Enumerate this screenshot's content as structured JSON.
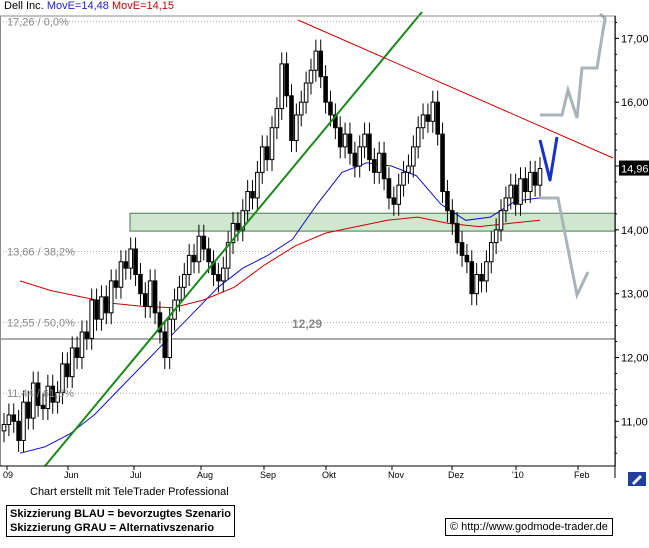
{
  "header": {
    "instrument": "Dell Inc.",
    "ma_blue_label": "MovE=14,48",
    "ma_red_label": "MovE=14,15"
  },
  "credit": "Chart erstellt mit TeleTrader Professional",
  "legend": {
    "line1": "Skizzierung BLAU = bevorzugtes Szenario",
    "line2": "Skizzierung GRAU = Alternativszenario"
  },
  "source": {
    "symbol": "©",
    "url": "http://www.godmode-trader.de"
  },
  "colors": {
    "candle": "#000000",
    "ma_blue": "#1010cc",
    "ma_red": "#cc0000",
    "trend_green": "#1a8a1a",
    "resistance_red": "#cc0000",
    "support_zone": "#cfe6cf",
    "scenario_blue": "#1a30c8",
    "scenario_gray": "#a7b5bb",
    "fib_line": "#aaaaaa",
    "level_line": "#555555"
  },
  "chart_data": {
    "type": "candlestick",
    "title": "Dell Inc.",
    "ylim": [
      10.3,
      17.35
    ],
    "y_ticks": [
      11.0,
      12.0,
      13.0,
      14.0,
      15.0,
      16.0,
      17.0
    ],
    "y_tick_labels": [
      "11,00",
      "12,00",
      "13,00",
      "14,00",
      "15,00",
      "16,00",
      "17,00"
    ],
    "x_tick_labels": [
      "09",
      "Jun",
      "Jul",
      "Aug",
      "Sep",
      "Okt",
      "Nov",
      "Dez",
      "'10",
      "Feb"
    ],
    "grid": "horizontal dotted at fibonacci levels",
    "last_price_label": "14,96",
    "fib_levels": [
      {
        "label": "17,26 / 0,0%",
        "value": 17.26
      },
      {
        "label": "13,66 / 38,2%",
        "value": 13.66
      },
      {
        "label": "12,55 / 50,0%",
        "value": 12.55
      },
      {
        "label": "11,44 / 61,8%",
        "value": 11.44
      }
    ],
    "horizontal_level": {
      "label": "12,29",
      "value": 12.29
    },
    "support_zone": [
      13.98,
      14.26
    ],
    "close_series_approx": [
      10.95,
      11.1,
      11.0,
      10.7,
      11.3,
      11.05,
      11.6,
      11.25,
      11.2,
      11.55,
      11.3,
      11.45,
      11.9,
      11.7,
      12.15,
      12.0,
      12.4,
      12.3,
      12.9,
      12.6,
      12.95,
      12.7,
      13.2,
      13.1,
      13.5,
      13.4,
      13.7,
      13.3,
      13.0,
      12.8,
      13.2,
      12.7,
      12.4,
      12.0,
      12.6,
      12.9,
      13.1,
      13.3,
      13.6,
      13.5,
      13.9,
      13.7,
      13.5,
      13.3,
      13.2,
      13.4,
      13.8,
      14.1,
      14.0,
      14.3,
      14.6,
      14.5,
      14.9,
      15.3,
      15.1,
      15.6,
      15.9,
      16.6,
      16.1,
      15.4,
      15.8,
      16.0,
      16.3,
      16.5,
      16.8,
      16.4,
      16.0,
      15.8,
      15.6,
      15.3,
      15.5,
      15.2,
      15.0,
      15.3,
      15.5,
      15.1,
      14.9,
      15.2,
      14.8,
      14.5,
      14.4,
      14.7,
      14.9,
      15.0,
      15.3,
      15.6,
      15.8,
      15.7,
      16.0,
      15.5,
      14.6,
      14.3,
      14.1,
      13.8,
      13.6,
      13.5,
      13.0,
      13.3,
      13.2,
      13.5,
      13.8,
      14.0,
      14.3,
      14.5,
      14.7,
      14.4,
      14.8,
      14.6,
      14.9,
      14.7,
      14.96
    ],
    "ma_blue_series_approx": [
      10.5,
      10.6,
      10.8,
      11.1,
      11.5,
      11.9,
      12.3,
      12.7,
      13.1,
      13.4,
      13.6,
      13.85,
      14.4,
      14.9,
      15.05,
      15.0,
      14.85,
      14.4,
      14.15,
      14.2,
      14.45,
      14.5
    ],
    "ma_red_series_approx": [
      13.2,
      13.05,
      12.95,
      12.85,
      12.8,
      12.78,
      12.9,
      13.1,
      13.45,
      13.75,
      13.95,
      14.05,
      14.15,
      14.2,
      14.1,
      14.05,
      14.1,
      14.15
    ],
    "ylabel": "",
    "xlabel": ""
  }
}
